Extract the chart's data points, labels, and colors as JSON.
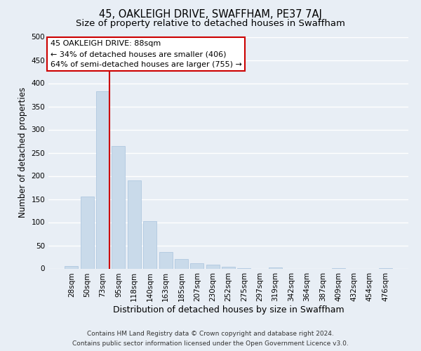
{
  "title": "45, OAKLEIGH DRIVE, SWAFFHAM, PE37 7AJ",
  "subtitle": "Size of property relative to detached houses in Swaffham",
  "xlabel": "Distribution of detached houses by size in Swaffham",
  "ylabel": "Number of detached properties",
  "footer_line1": "Contains HM Land Registry data © Crown copyright and database right 2024.",
  "footer_line2": "Contains public sector information licensed under the Open Government Licence v3.0.",
  "bar_labels": [
    "28sqm",
    "50sqm",
    "73sqm",
    "95sqm",
    "118sqm",
    "140sqm",
    "163sqm",
    "185sqm",
    "207sqm",
    "230sqm",
    "252sqm",
    "275sqm",
    "297sqm",
    "319sqm",
    "342sqm",
    "364sqm",
    "387sqm",
    "409sqm",
    "432sqm",
    "454sqm",
    "476sqm"
  ],
  "bar_values": [
    6,
    155,
    383,
    265,
    190,
    102,
    36,
    21,
    12,
    9,
    4,
    1,
    0,
    3,
    0,
    0,
    0,
    1,
    0,
    0,
    1
  ],
  "bar_color": "#c9daea",
  "bar_edgecolor": "#b0c8e0",
  "ylim": [
    0,
    500
  ],
  "yticks": [
    0,
    50,
    100,
    150,
    200,
    250,
    300,
    350,
    400,
    450,
    500
  ],
  "vline_color": "#cc0000",
  "vline_x_index": 2,
  "annotation_title": "45 OAKLEIGH DRIVE: 88sqm",
  "annotation_line1": "← 34% of detached houses are smaller (406)",
  "annotation_line2": "64% of semi-detached houses are larger (755) →",
  "annotation_box_facecolor": "#ffffff",
  "annotation_box_edgecolor": "#cc0000",
  "bg_color": "#e8eef5",
  "grid_color": "#ffffff",
  "title_fontsize": 10.5,
  "subtitle_fontsize": 9.5,
  "xlabel_fontsize": 9,
  "ylabel_fontsize": 8.5,
  "tick_fontsize": 7.5,
  "annotation_fontsize": 8,
  "footer_fontsize": 6.5
}
